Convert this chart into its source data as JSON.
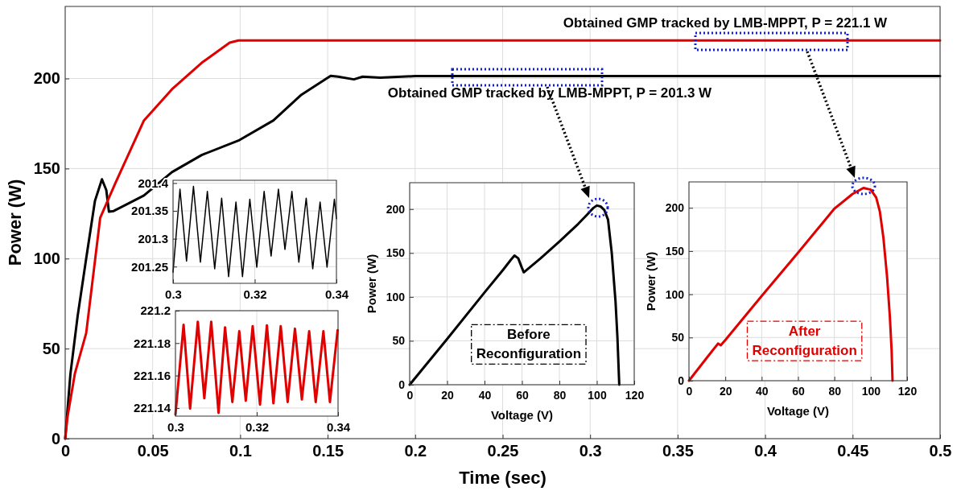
{
  "chart_data": [
    {
      "type": "line",
      "xlabel": "Time (sec)",
      "ylabel": "Power (W)",
      "xlim": [
        0,
        0.5
      ],
      "ylim": [
        0,
        240
      ],
      "xticks": [
        0,
        0.05,
        0.1,
        0.15,
        0.2,
        0.25,
        0.3,
        0.35,
        0.4,
        0.45,
        0.5
      ],
      "yticks": [
        0,
        50,
        100,
        150,
        200
      ],
      "grid": true,
      "line_style": "solid",
      "marker": "none",
      "series": [
        {
          "color": "#000000",
          "x": [
            0,
            0.003,
            0.0071,
            0.012,
            0.017,
            0.021,
            0.0235,
            0.025,
            0.0277,
            0.045,
            0.061,
            0.078,
            0.099,
            0.119,
            0.135,
            0.1517,
            0.156,
            0.165,
            0.17,
            0.18,
            0.2,
            0.5
          ],
          "values": [
            0,
            36,
            68,
            100,
            132,
            144,
            138,
            126,
            126.4,
            135,
            148,
            157.5,
            165.5,
            176.7,
            191,
            201.5,
            201,
            199.5,
            201,
            200.5,
            201.3,
            201.3
          ]
        },
        {
          "color": "#e00000",
          "x": [
            0,
            0.0013,
            0.0055,
            0.012,
            0.02,
            0.0285,
            0.045,
            0.061,
            0.078,
            0.094,
            0.099,
            0.5
          ],
          "values": [
            0,
            12,
            36,
            58.6,
            122.6,
            141.5,
            176.7,
            194,
            208.7,
            219.9,
            221.1,
            221.1
          ]
        }
      ],
      "annotations": [
        "Obtained GMP tracked by LMB-MPPT, P = 221.1 W",
        "Obtained GMP tracked by LMB-MPPT, P = 201.3 W"
      ]
    },
    {
      "type": "line",
      "xlim": [
        0.3,
        0.34
      ],
      "ylim": [
        201.22,
        201.405
      ],
      "xticks": [
        0.3,
        0.32,
        0.34
      ],
      "yticks": [
        201.25,
        201.3,
        201.35,
        201.4
      ],
      "grid": true,
      "line_style": "solid",
      "marker": "none",
      "series": [
        {
          "color": "#000000",
          "x": [
            0.3,
            0.3017,
            0.3033,
            0.305,
            0.3067,
            0.3084,
            0.3102,
            0.3119,
            0.3136,
            0.3154,
            0.317,
            0.3188,
            0.3205,
            0.3223,
            0.324,
            0.3258,
            0.3274,
            0.3291,
            0.3308,
            0.3326,
            0.3342,
            0.336,
            0.3377,
            0.3395,
            0.34
          ],
          "values": [
            201.24,
            201.389,
            201.26,
            201.394,
            201.258,
            201.385,
            201.246,
            201.373,
            201.232,
            201.366,
            201.232,
            201.371,
            201.249,
            201.385,
            201.269,
            201.389,
            201.281,
            201.385,
            201.258,
            201.373,
            201.246,
            201.366,
            201.249,
            201.371,
            201.336
          ]
        }
      ]
    },
    {
      "type": "line",
      "xlim": [
        0.3,
        0.34
      ],
      "ylim": [
        221.135,
        221.2
      ],
      "xticks": [
        0.3,
        0.32,
        0.34
      ],
      "yticks": [
        221.14,
        221.16,
        221.18,
        221.2
      ],
      "grid": true,
      "line_style": "solid",
      "marker": "none",
      "series": [
        {
          "color": "#e00000",
          "x": [
            0.3,
            0.302,
            0.3036,
            0.3055,
            0.3071,
            0.3088,
            0.3106,
            0.3122,
            0.314,
            0.3157,
            0.3173,
            0.319,
            0.3208,
            0.3225,
            0.3241,
            0.3259,
            0.3276,
            0.3294,
            0.3311,
            0.3329,
            0.3345,
            0.3364,
            0.338,
            0.3399
          ],
          "values": [
            221.136,
            221.1913,
            221.1397,
            221.1932,
            221.146,
            221.1932,
            221.137,
            221.1897,
            221.1437,
            221.1873,
            221.1445,
            221.1905,
            221.1421,
            221.191,
            221.1429,
            221.1905,
            221.1437,
            221.1889,
            221.1453,
            221.1873,
            221.1437,
            221.1873,
            221.1437,
            221.188
          ]
        }
      ]
    },
    {
      "type": "line",
      "xlabel": "Voltage (V)",
      "ylabel": "Power (W)",
      "xlim": [
        0,
        120
      ],
      "ylim": [
        0,
        230
      ],
      "xticks": [
        0,
        20,
        40,
        60,
        80,
        100,
        120
      ],
      "yticks": [
        0,
        50,
        100,
        150,
        200
      ],
      "grid": true,
      "line_style": "solid",
      "marker": "none",
      "series": [
        {
          "color": "#000000",
          "x": [
            0,
            20,
            40,
            50,
            54,
            56,
            58,
            60,
            61,
            70,
            80,
            90,
            95,
            98,
            100,
            102,
            104,
            106,
            108,
            110,
            111,
            112
          ],
          "values": [
            0,
            52,
            105,
            131,
            142,
            147,
            144,
            133,
            128,
            144,
            163,
            183,
            194,
            201,
            204,
            203,
            199,
            188,
            150,
            95,
            55,
            0
          ]
        }
      ],
      "annotations": [
        "Before Reconfiguration"
      ]
    },
    {
      "type": "line",
      "xlabel": "Voltage (V)",
      "ylabel": "Power (W)",
      "xlim": [
        0,
        120
      ],
      "ylim": [
        0,
        230
      ],
      "xticks": [
        0,
        20,
        40,
        60,
        80,
        100,
        120
      ],
      "yticks": [
        0,
        50,
        100,
        150,
        200
      ],
      "grid": true,
      "line_style": "solid",
      "marker": "none",
      "series": [
        {
          "color": "#e00000",
          "x": [
            0,
            10,
            16,
            17.5,
            20,
            40,
            60,
            80,
            90,
            96,
            100,
            103,
            105,
            107,
            109,
            110.5,
            111.5,
            112
          ],
          "values": [
            0,
            27,
            43,
            41,
            47,
            98,
            148,
            199,
            216,
            223,
            221,
            212,
            196,
            165,
            120,
            75,
            35,
            0
          ]
        }
      ],
      "annotations": [
        "After Reconfiguration"
      ]
    }
  ]
}
